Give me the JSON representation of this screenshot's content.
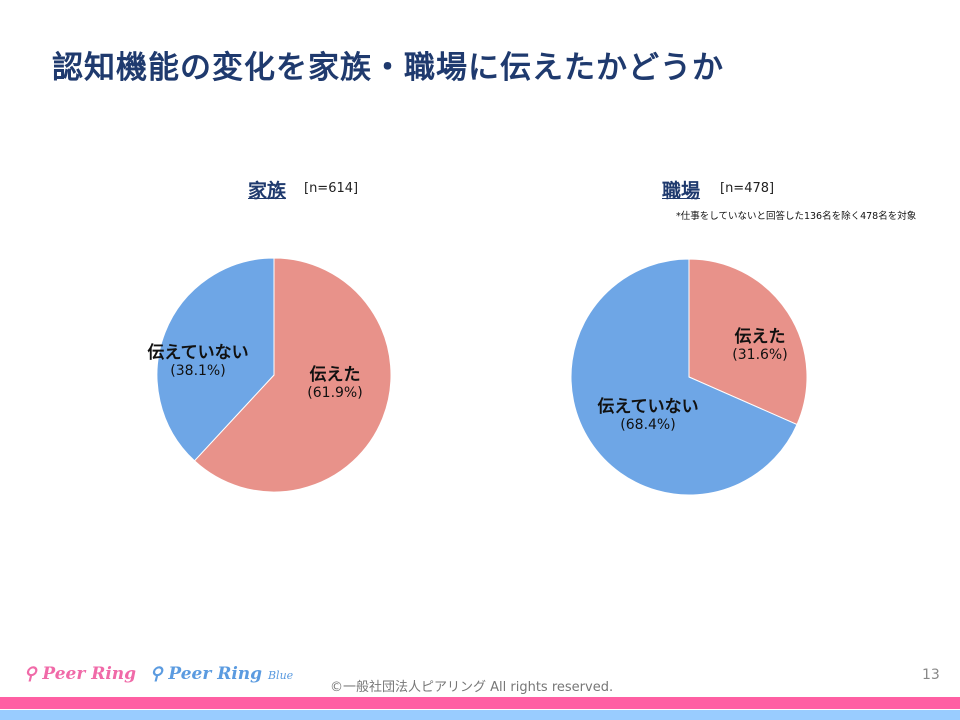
{
  "title": "認知機能の変化を家族・職場に伝えたかどうか",
  "colors": {
    "told": "#e8928a",
    "not_told": "#6ea6e6",
    "title": "#1f3a6e"
  },
  "chart_data": [
    {
      "type": "pie",
      "title": "家族",
      "n_label": "[n=614]",
      "categories": [
        "伝えた",
        "伝えていない"
      ],
      "values": [
        61.9,
        38.1
      ],
      "value_labels": [
        "(61.9%)",
        "(38.1%)"
      ]
    },
    {
      "type": "pie",
      "title": "職場",
      "n_label": "[n=478]",
      "note": "*仕事をしていないと回答した136名を除く478名を対象",
      "categories": [
        "伝えた",
        "伝えていない"
      ],
      "values": [
        31.6,
        68.4
      ],
      "value_labels": [
        "(31.6%)",
        "(68.4%)"
      ]
    }
  ],
  "footer": {
    "logo1": "Peer Ring",
    "logo2": "Peer Ring",
    "logo2_sub": "Blue",
    "copyright": "©一般社団法人ピアリング All rights reserved.",
    "page": "13"
  }
}
